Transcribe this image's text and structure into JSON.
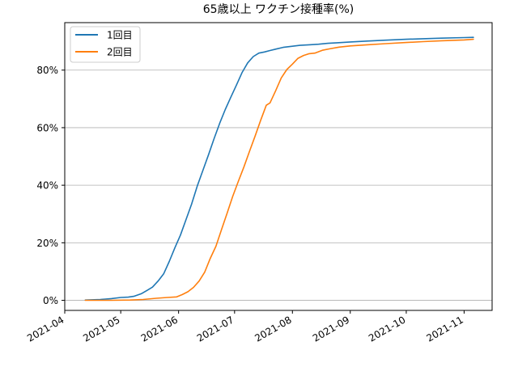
{
  "chart_data": {
    "type": "line",
    "title": "65歳以上 ワクチン接種率(%)",
    "xlabel": "",
    "ylabel": "",
    "xlim": [
      "2021-04-01",
      "2021-11-16"
    ],
    "ylim": [
      -3.5,
      96.5
    ],
    "x_ticks": [
      "2021-04",
      "2021-05",
      "2021-06",
      "2021-07",
      "2021-08",
      "2021-09",
      "2021-10",
      "2021-11"
    ],
    "x_tick_dates": [
      "2021-04-01",
      "2021-05-01",
      "2021-06-01",
      "2021-07-01",
      "2021-08-01",
      "2021-09-01",
      "2021-10-01",
      "2021-11-01"
    ],
    "y_ticks": [
      0,
      20,
      40,
      60,
      80
    ],
    "y_tick_labels": [
      "0%",
      "20%",
      "40%",
      "60%",
      "80%"
    ],
    "grid": "horizontal",
    "legend": "upper-left",
    "series": [
      {
        "name": "1回目",
        "color": "#1f77b4",
        "x": [
          "2021-04-12",
          "2021-04-20",
          "2021-04-26",
          "2021-05-01",
          "2021-05-05",
          "2021-05-08",
          "2021-05-12",
          "2021-05-15",
          "2021-05-18",
          "2021-05-21",
          "2021-05-24",
          "2021-05-27",
          "2021-05-30",
          "2021-06-02",
          "2021-06-05",
          "2021-06-08",
          "2021-06-11",
          "2021-06-14",
          "2021-06-17",
          "2021-06-20",
          "2021-06-23",
          "2021-06-26",
          "2021-06-29",
          "2021-07-02",
          "2021-07-05",
          "2021-07-08",
          "2021-07-11",
          "2021-07-14",
          "2021-07-17",
          "2021-07-20",
          "2021-07-23",
          "2021-07-27",
          "2021-08-01",
          "2021-08-05",
          "2021-08-10",
          "2021-08-15",
          "2021-08-20",
          "2021-08-25",
          "2021-09-01",
          "2021-09-10",
          "2021-09-20",
          "2021-10-01",
          "2021-10-10",
          "2021-10-20",
          "2021-11-01",
          "2021-11-06"
        ],
        "y": [
          0.1,
          0.3,
          0.6,
          1.0,
          1.1,
          1.4,
          2.3,
          3.4,
          4.6,
          6.7,
          9.2,
          13.5,
          18.2,
          22.7,
          28.1,
          33.5,
          39.7,
          45.1,
          50.5,
          56.2,
          61.5,
          66.3,
          70.6,
          74.8,
          79.1,
          82.5,
          84.7,
          85.9,
          86.3,
          86.8,
          87.3,
          87.9,
          88.3,
          88.6,
          88.8,
          89.0,
          89.3,
          89.5,
          89.8,
          90.1,
          90.4,
          90.7,
          90.9,
          91.1,
          91.3,
          91.4
        ]
      },
      {
        "name": "2回目",
        "color": "#ff7f0e",
        "x": [
          "2021-04-12",
          "2021-04-26",
          "2021-05-06",
          "2021-05-13",
          "2021-05-20",
          "2021-05-26",
          "2021-05-31",
          "2021-06-03",
          "2021-06-06",
          "2021-06-09",
          "2021-06-12",
          "2021-06-15",
          "2021-06-18",
          "2021-06-21",
          "2021-06-24",
          "2021-06-27",
          "2021-06-30",
          "2021-07-03",
          "2021-07-06",
          "2021-07-09",
          "2021-07-12",
          "2021-07-15",
          "2021-07-18",
          "2021-07-20",
          "2021-07-23",
          "2021-07-26",
          "2021-07-29",
          "2021-08-01",
          "2021-08-04",
          "2021-08-07",
          "2021-08-10",
          "2021-08-13",
          "2021-08-17",
          "2021-08-21",
          "2021-08-26",
          "2021-09-01",
          "2021-09-10",
          "2021-09-20",
          "2021-10-01",
          "2021-10-10",
          "2021-10-20",
          "2021-11-01",
          "2021-11-06"
        ],
        "y": [
          0,
          0,
          0.1,
          0.3,
          0.7,
          1.0,
          1.2,
          2.0,
          3.0,
          4.5,
          6.7,
          9.8,
          14.6,
          18.8,
          24.6,
          30.3,
          36.1,
          41.3,
          46.3,
          51.8,
          57.1,
          62.6,
          67.8,
          68.6,
          72.8,
          77.3,
          80.2,
          82.1,
          84.1,
          85.1,
          85.7,
          85.9,
          86.9,
          87.4,
          88.0,
          88.4,
          88.8,
          89.2,
          89.6,
          89.9,
          90.2,
          90.5,
          90.7
        ]
      }
    ]
  }
}
